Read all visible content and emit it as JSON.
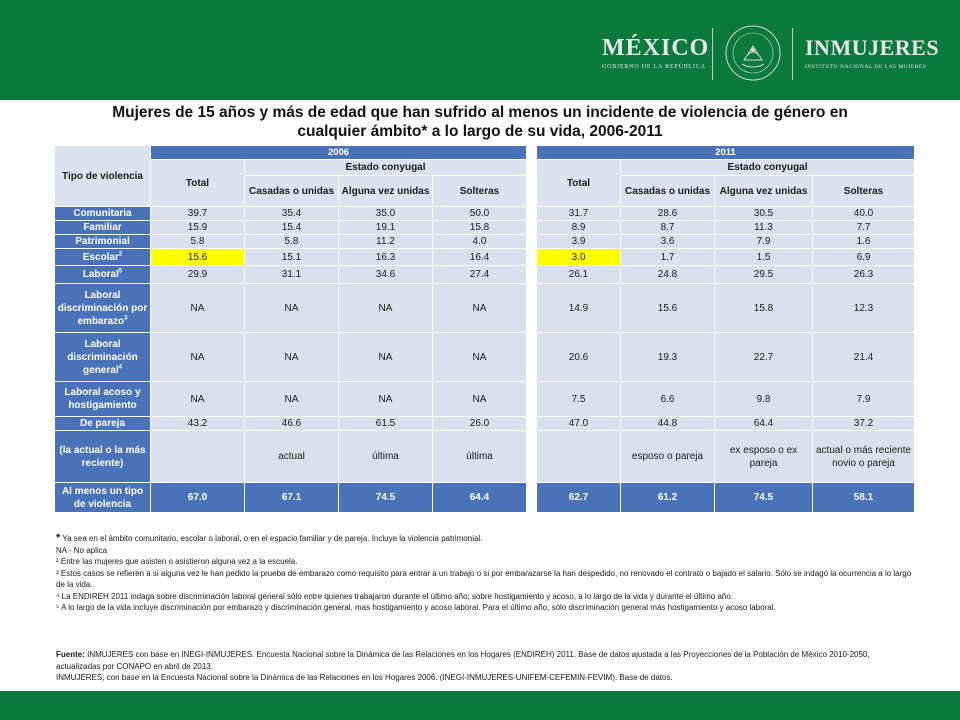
{
  "header": {
    "logo_left_title": "MÉXICO",
    "logo_left_subtitle": "GOBIERNO DE LA REPÚBLICA",
    "seal_text": "ESTADOS UNIDOS MEXICANOS",
    "logo_right_title": "INMUJERES",
    "logo_right_subtitle": "INSTITUTO NACIONAL DE LAS MUJERES",
    "band_color": "#0a7a3c"
  },
  "title_line1": "Mujeres de 15 años y más de edad que han sufrido al menos un incidente de violencia de género en",
  "title_line2": "cualquier ámbito* a lo largo de su vida, 2006-2011",
  "table": {
    "header": {
      "row_label": "Tipo de violencia",
      "year_a": "2006",
      "year_b": "2011",
      "total": "Total",
      "estado": "Estado conyugal",
      "casadas": "Casadas o unidas",
      "alguna": "Alguna vez unidas",
      "solteras": "Solteras"
    },
    "rows": [
      {
        "label": "Comunitaria",
        "sup": "",
        "v2006": [
          "39.7",
          "35.4",
          "35.0",
          "50.0"
        ],
        "v2011": [
          "31.7",
          "28.6",
          "30.5",
          "40.0"
        ]
      },
      {
        "label": "Familiar",
        "sup": "",
        "v2006": [
          "15.9",
          "15.4",
          "19.1",
          "15.8"
        ],
        "v2011": [
          "8.9",
          "8.7",
          "11.3",
          "7.7"
        ]
      },
      {
        "label": "Patrimonial",
        "sup": "",
        "v2006": [
          "5.8",
          "5.8",
          "11.2",
          "4.0"
        ],
        "v2011": [
          "3.9",
          "3.6",
          "7.9",
          "1.6"
        ]
      },
      {
        "label": "Escolar",
        "sup": "2",
        "v2006": [
          "15.6",
          "15.1",
          "16.3",
          "16.4"
        ],
        "v2011": [
          "3.0",
          "1.7",
          "1.5",
          "6.9"
        ]
      },
      {
        "label": "Laboral",
        "sup": "5",
        "v2006": [
          "29.9",
          "31.1",
          "34.6",
          "27.4"
        ],
        "v2011": [
          "26.1",
          "24.8",
          "29.5",
          "26.3"
        ]
      },
      {
        "label": "Laboral discriminación por embarazo",
        "sup": "3",
        "v2006": [
          "NA",
          "NA",
          "NA",
          "NA"
        ],
        "v2011": [
          "14.9",
          "15.6",
          "15.8",
          "12.3"
        ]
      },
      {
        "label": "Laboral discriminación general",
        "sup": "4",
        "v2006": [
          "NA",
          "NA",
          "NA",
          "NA"
        ],
        "v2011": [
          "20.6",
          "19.3",
          "22.7",
          "21.4"
        ]
      },
      {
        "label": "Laboral acoso y hostigamiento",
        "sup": "",
        "v2006": [
          "NA",
          "NA",
          "NA",
          "NA"
        ],
        "v2011": [
          "7.5",
          "6.6",
          "9.8",
          "7.9"
        ]
      },
      {
        "label": "De pareja",
        "sup": "",
        "v2006": [
          "43.2",
          "46.6",
          "61.5",
          "26.0"
        ],
        "v2011": [
          "47.0",
          "44.8",
          "64.4",
          "37.2"
        ]
      },
      {
        "label": "(la actual o la más reciente)",
        "sup": "",
        "v2006": [
          "",
          "actual",
          "última",
          "última"
        ],
        "v2011": [
          "",
          "esposo o pareja",
          "ex esposo o ex pareja",
          "actual o más reciente novio o pareja"
        ]
      }
    ],
    "total_row": {
      "label": "Al menos un tipo de violencia",
      "v2006": [
        "67.0",
        "67.1",
        "74.5",
        "64.4"
      ],
      "v2011": [
        "62.7",
        "61.2",
        "74.5",
        "58.1"
      ]
    },
    "highlight_color": "#ffff00",
    "header_blue": "#4a72b8",
    "cell_light": "#d9e1ef"
  },
  "notes": {
    "star": "*",
    "n1": "Ya sea en el ámbito comunitario, escolar o laboral, o en el espacio familiar y de pareja. Incluye la violencia patrimonial.",
    "n2": "NA - No aplica",
    "n3": "² Entre las mujeres que asisten o asistieron alguna vez a la escuela.",
    "n4": "³ Estos casos se refieren a si alguna vez le han pedido la prueba de embarazo como requisito para entrar a un trabajo o si por embarazarse la han despedido, no renovado el contrato o bajado el salario. Sólo se indagó la ocurrencia a lo largo de la vida.",
    "n5": "⁴ La ENDIREH 2011 indaga sobre discriminación laboral general sólo entre quienes trabajaron durante el último año; sobre hostigamiento y acoso, a lo largo de la vida y durante el último año.",
    "n6": "⁵ A lo largo de la vida incluye discriminación por embarazo y discriminación general, mas hostigamiento y acoso laboral. Para el último año, sólo discriminación general más hostigamiento y acoso laboral."
  },
  "source": {
    "label": "Fuente:",
    "text1": "INMUJERES con base en INEGI-INMUJERES. Encuesta Nacional sobre la Dinámica de las Relaciones en los Hogares (ENDIREH) 2011. Base de datos ajustada a las Proyecciones de la Población de México 2010-2050, actualizadas por CONAPO en abril de 2013.",
    "text2": "INMUJERES, con base en la Encuesta Nacional sobre la Dinámica de las Relaciones en los Hogares 2006. (INEGI-INMUJERES-UNIFEM-CEFEMIN-FEVIM). Base de datos."
  }
}
